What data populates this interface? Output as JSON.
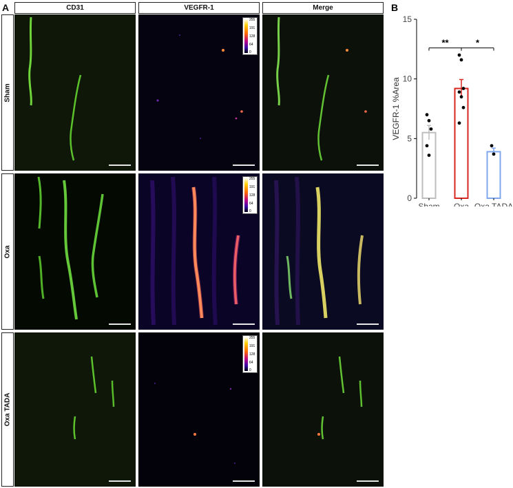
{
  "panel_a": {
    "label": "A",
    "columns": [
      "CD31",
      "VEGFR-1",
      "Merge"
    ],
    "rows": [
      "Sham",
      "Oxa",
      "Oxa TADA"
    ],
    "colorbar_ticks": [
      "255",
      "191",
      "128",
      "64",
      "0"
    ]
  },
  "chart_data": {
    "panel": "B",
    "type": "bar",
    "categories": [
      "Sham",
      "Oxa",
      "Oxa TADA"
    ],
    "values": [
      5.5,
      9.2,
      3.9
    ],
    "error": [
      0.6,
      0.75,
      0.3
    ],
    "points": [
      [
        7.0,
        6.5,
        5.8,
        4.4,
        3.6
      ],
      [
        12.0,
        11.6,
        9.2,
        8.9,
        8.5,
        7.6,
        6.3
      ],
      [
        4.4,
        3.7
      ]
    ],
    "bar_colors": [
      "#bdbdbd",
      "#d7261e",
      "#7fa7ee"
    ],
    "ylabel": "VEGFR-1 %Area",
    "xlabel": "",
    "ylim": [
      0,
      15
    ],
    "yticks": [
      0,
      5,
      10,
      15
    ],
    "grid": false,
    "significance": [
      {
        "from": "Sham",
        "to": "Oxa",
        "label": "**"
      },
      {
        "from": "Oxa",
        "to": "Oxa TADA",
        "label": "*"
      }
    ]
  }
}
